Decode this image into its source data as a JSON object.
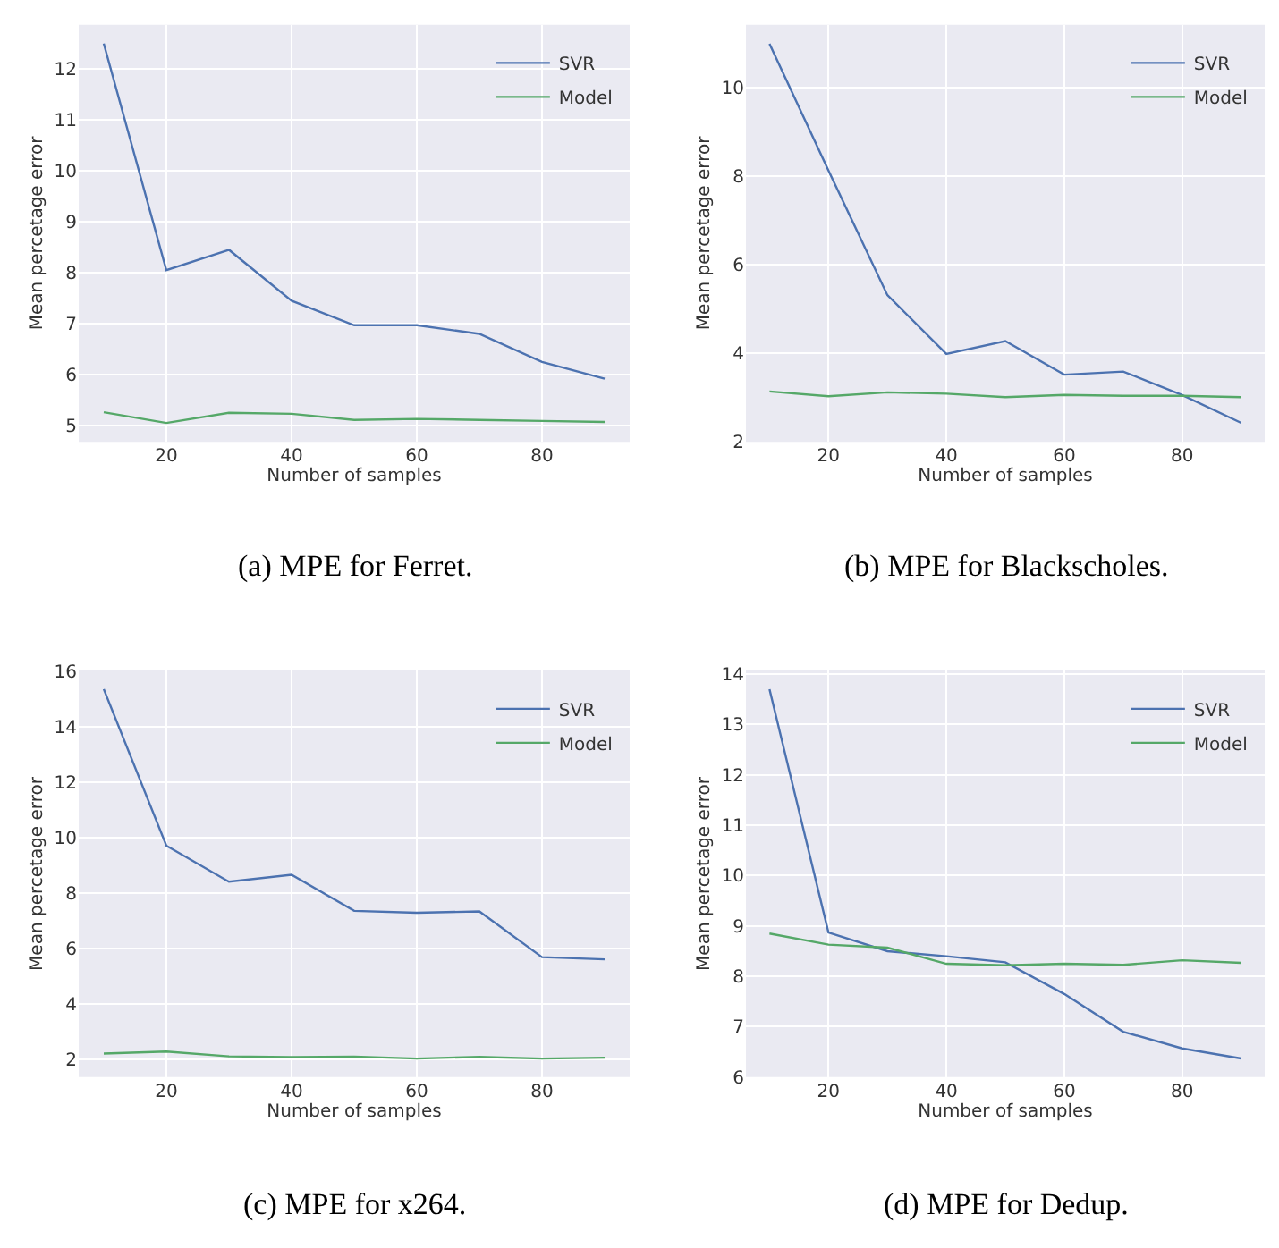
{
  "chart_data": [
    {
      "type": "line",
      "xlabel": "Number of samples",
      "ylabel": "Mean percetage error",
      "x": [
        10,
        20,
        30,
        40,
        50,
        60,
        70,
        80,
        90
      ],
      "xlim": [
        6,
        94
      ],
      "ylim": [
        4.68,
        12.87
      ],
      "xticks": [
        20,
        40,
        60,
        80
      ],
      "yticks": [
        5,
        6,
        7,
        8,
        9,
        10,
        11,
        12
      ],
      "grid": true,
      "legend": "top right",
      "annotations": [
        "(a) MPE for Ferret."
      ],
      "series": [
        {
          "name": "SVR",
          "color": "#4c72b0",
          "values": [
            12.5,
            8.05,
            8.45,
            7.45,
            6.97,
            6.97,
            6.8,
            6.25,
            5.92
          ]
        },
        {
          "name": "Model",
          "color": "#55a868",
          "values": [
            5.26,
            5.05,
            5.25,
            5.23,
            5.11,
            5.13,
            5.11,
            5.09,
            5.07
          ]
        }
      ]
    },
    {
      "type": "line",
      "xlabel": "Number of samples",
      "ylabel": "Mean percetage error",
      "x": [
        10,
        20,
        30,
        40,
        50,
        60,
        70,
        80,
        90
      ],
      "xlim": [
        6,
        94
      ],
      "ylim": [
        1.99,
        11.43
      ],
      "xticks": [
        20,
        40,
        60,
        80
      ],
      "yticks": [
        2,
        4,
        6,
        8,
        10
      ],
      "grid": true,
      "legend": "top right",
      "annotations": [
        "(b) MPE for Blackscholes."
      ],
      "series": [
        {
          "name": "SVR",
          "color": "#4c72b0",
          "values": [
            11.0,
            8.13,
            5.31,
            3.98,
            4.27,
            3.51,
            3.58,
            3.05,
            2.42
          ]
        },
        {
          "name": "Model",
          "color": "#55a868",
          "values": [
            3.13,
            3.02,
            3.11,
            3.08,
            3.0,
            3.05,
            3.03,
            3.03,
            3.0
          ]
        }
      ]
    },
    {
      "type": "line",
      "xlabel": "Number of samples",
      "ylabel": "Mean percetage error",
      "x": [
        10,
        20,
        30,
        40,
        50,
        60,
        70,
        80,
        90
      ],
      "xlim": [
        6,
        94
      ],
      "ylim": [
        1.35,
        16.02
      ],
      "xticks": [
        20,
        40,
        60,
        80
      ],
      "yticks": [
        2,
        4,
        6,
        8,
        10,
        12,
        14,
        16
      ],
      "grid": true,
      "legend": "top right",
      "annotations": [
        "(c) MPE for x264."
      ],
      "series": [
        {
          "name": "SVR",
          "color": "#4c72b0",
          "values": [
            15.35,
            9.7,
            8.4,
            8.65,
            7.35,
            7.28,
            7.33,
            5.68,
            5.6
          ]
        },
        {
          "name": "Model",
          "color": "#55a868",
          "values": [
            2.2,
            2.27,
            2.1,
            2.07,
            2.09,
            2.02,
            2.08,
            2.02,
            2.05
          ]
        }
      ]
    },
    {
      "type": "line",
      "xlabel": "Number of samples",
      "ylabel": "Mean percetage error",
      "x": [
        10,
        20,
        30,
        40,
        50,
        60,
        70,
        80,
        90
      ],
      "xlim": [
        6,
        94
      ],
      "ylim": [
        6.0,
        14.07
      ],
      "xticks": [
        20,
        40,
        60,
        80
      ],
      "yticks": [
        6,
        7,
        8,
        9,
        10,
        11,
        12,
        13,
        14
      ],
      "grid": true,
      "legend": "top right",
      "annotations": [
        "(d) MPE for Dedup."
      ],
      "series": [
        {
          "name": "SVR",
          "color": "#4c72b0",
          "values": [
            13.7,
            8.87,
            8.5,
            8.4,
            8.28,
            7.65,
            6.9,
            6.57,
            6.37
          ]
        },
        {
          "name": "Model",
          "color": "#55a868",
          "values": [
            8.85,
            8.63,
            8.57,
            8.25,
            8.22,
            8.25,
            8.23,
            8.32,
            8.27
          ]
        }
      ]
    }
  ]
}
